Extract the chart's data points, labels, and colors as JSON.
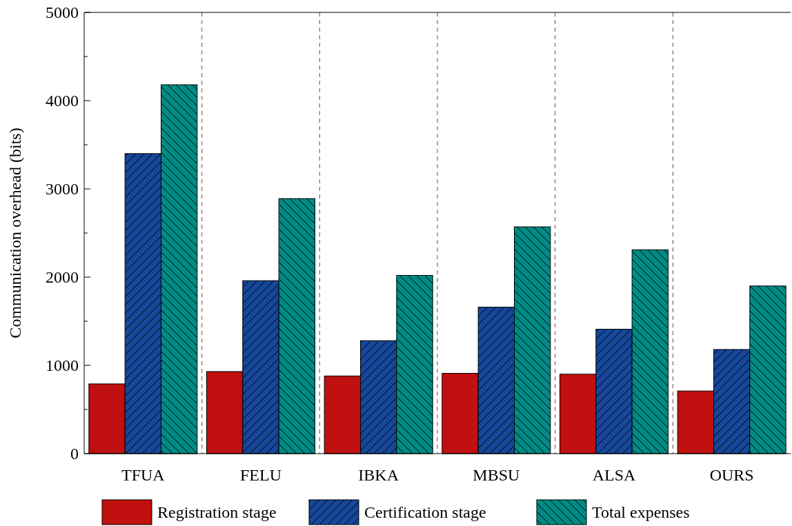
{
  "chart_data": {
    "type": "bar",
    "ylabel": "Communication overhead (bits)",
    "categories": [
      "TFUA",
      "FELU",
      "IBKA",
      "MBSU",
      "ALSA",
      "OURS"
    ],
    "series": [
      {
        "name": "Registration stage",
        "color": "#c0100f",
        "values": [
          790,
          930,
          880,
          910,
          900,
          710
        ]
      },
      {
        "name": "Certification stage",
        "color": "#15479a",
        "values": [
          3400,
          1960,
          1280,
          1660,
          1410,
          1180
        ]
      },
      {
        "name": "Total expenses",
        "color": "#008b84",
        "values": [
          4180,
          2890,
          2020,
          2570,
          2310,
          1900
        ]
      }
    ],
    "ylim": [
      0,
      5000
    ],
    "yticks": [
      0,
      {
        "value": 500,
        "label": null
      },
      1000,
      {
        "value": 1500,
        "label": null
      },
      2000,
      {
        "value": 2500,
        "label": null
      },
      3000,
      {
        "value": 3500,
        "label": null
      },
      4000,
      {
        "value": 4500,
        "label": null
      },
      5000
    ],
    "grid": false,
    "legend": "bottom"
  }
}
